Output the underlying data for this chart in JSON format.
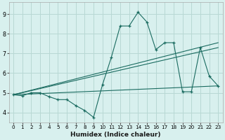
{
  "xlabel": "Humidex (Indice chaleur)",
  "bg_color": "#d8f0ee",
  "grid_color": "#b8d8d4",
  "line_color": "#1a6b60",
  "xlim": [
    -0.5,
    23.5
  ],
  "ylim": [
    3.5,
    9.6
  ],
  "xticks": [
    0,
    1,
    2,
    3,
    4,
    5,
    6,
    7,
    8,
    9,
    10,
    11,
    12,
    13,
    14,
    15,
    16,
    17,
    18,
    19,
    20,
    21,
    22,
    23
  ],
  "yticks": [
    4,
    5,
    6,
    7,
    8,
    9
  ],
  "line1_x": [
    0,
    1,
    2,
    3,
    4,
    5,
    6,
    7,
    8,
    9,
    10,
    11,
    12,
    13,
    14,
    15,
    16,
    17,
    18,
    19,
    20,
    21,
    22,
    23
  ],
  "line1_y": [
    4.9,
    4.85,
    5.0,
    5.0,
    4.8,
    4.65,
    4.65,
    4.35,
    4.1,
    3.75,
    5.4,
    6.8,
    8.4,
    8.4,
    9.1,
    8.6,
    7.2,
    7.55,
    7.55,
    5.05,
    5.05,
    7.3,
    5.85,
    5.35
  ],
  "line2_x": [
    0,
    23
  ],
  "line2_y": [
    4.9,
    5.35
  ],
  "line3_x": [
    0,
    23
  ],
  "line3_y": [
    4.9,
    7.55
  ],
  "line4_x": [
    0,
    23
  ],
  "line4_y": [
    4.9,
    7.3
  ]
}
